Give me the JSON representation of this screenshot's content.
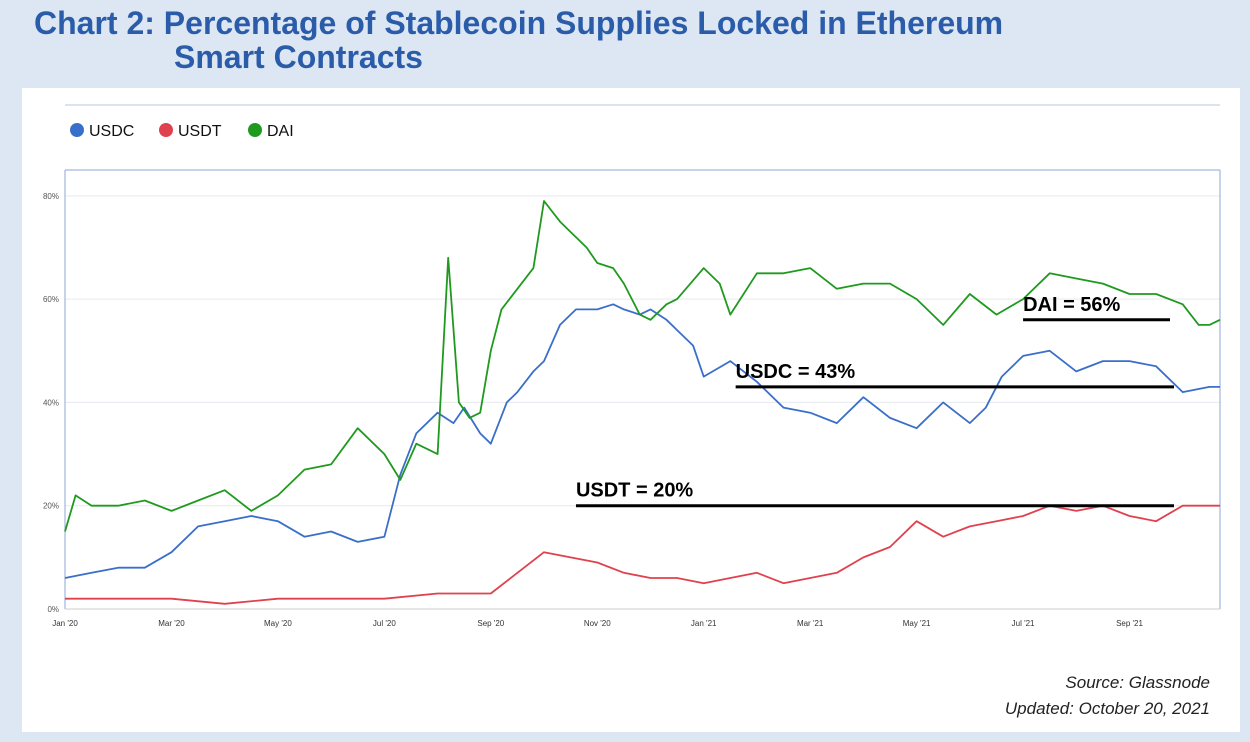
{
  "title": {
    "line1": "Chart 2: Percentage of Stablecoin Supplies Locked in Ethereum",
    "line2": "Smart Contracts"
  },
  "source": {
    "line1": "Source:  Glassnode",
    "line2": "Updated: October 20, 2021"
  },
  "colors": {
    "usdc": "#3a6fc9",
    "usdt": "#e0414e",
    "dai": "#1f9a1f",
    "frame": "#8fa6d8",
    "bg": "#dde7f4"
  },
  "chart_data": {
    "type": "line",
    "ylim": [
      0,
      85
    ],
    "yticks": [
      0,
      20,
      40,
      60,
      80
    ],
    "ytick_labels": [
      "0%",
      "20%",
      "40%",
      "60%",
      "80%"
    ],
    "xlim": [
      0,
      21.7
    ],
    "xticks": [
      0,
      2,
      4,
      6,
      8,
      10,
      12,
      14,
      16,
      18,
      20
    ],
    "xtick_labels": [
      "Jan '20",
      "Mar '20",
      "May '20",
      "Jul '20",
      "Sep '20",
      "Nov '20",
      "Jan '21",
      "Mar '21",
      "May '21",
      "Jul '21",
      "Sep '21"
    ],
    "legend_position": "top-left",
    "grid": true,
    "series": [
      {
        "name": "USDC",
        "color": "#3a6fc9",
        "x": [
          0,
          0.5,
          1,
          1.5,
          2,
          2.5,
          3,
          3.5,
          4,
          4.5,
          5,
          5.5,
          6,
          6.3,
          6.6,
          7,
          7.3,
          7.5,
          7.8,
          8,
          8.3,
          8.5,
          8.8,
          9,
          9.3,
          9.6,
          10,
          10.3,
          10.5,
          10.8,
          11,
          11.3,
          11.5,
          11.8,
          12,
          12.5,
          13,
          13.5,
          14,
          14.5,
          15,
          15.5,
          16,
          16.5,
          17,
          17.3,
          17.6,
          18,
          18.5,
          19,
          19.5,
          20,
          20.5,
          21,
          21.5,
          21.7
        ],
        "y": [
          6,
          7,
          8,
          8,
          11,
          16,
          17,
          18,
          17,
          14,
          15,
          13,
          14,
          26,
          34,
          38,
          36,
          39,
          34,
          32,
          40,
          42,
          46,
          48,
          55,
          58,
          58,
          59,
          58,
          57,
          58,
          56,
          54,
          51,
          45,
          48,
          44,
          39,
          38,
          36,
          41,
          37,
          35,
          40,
          36,
          39,
          45,
          49,
          50,
          46,
          48,
          48,
          47,
          42,
          43,
          43
        ]
      },
      {
        "name": "USDT",
        "color": "#e0414e",
        "x": [
          0,
          1,
          2,
          3,
          4,
          5,
          6,
          7,
          8,
          9,
          9.5,
          10,
          10.5,
          11,
          11.5,
          12,
          12.5,
          13,
          13.5,
          14,
          14.5,
          15,
          15.5,
          16,
          16.5,
          17,
          17.5,
          18,
          18.5,
          19,
          19.5,
          20,
          20.5,
          21,
          21.5,
          21.7
        ],
        "y": [
          2,
          2,
          2,
          1,
          2,
          2,
          2,
          3,
          3,
          11,
          10,
          9,
          7,
          6,
          6,
          5,
          6,
          7,
          5,
          6,
          7,
          10,
          12,
          17,
          14,
          16,
          17,
          18,
          20,
          19,
          20,
          18,
          17,
          20,
          20,
          20
        ]
      },
      {
        "name": "DAI",
        "color": "#1f9a1f",
        "x": [
          0,
          0.2,
          0.5,
          1,
          1.5,
          2,
          2.5,
          3,
          3.5,
          4,
          4.5,
          5,
          5.5,
          6,
          6.3,
          6.6,
          7,
          7.2,
          7.4,
          7.6,
          7.8,
          8,
          8.2,
          8.5,
          8.8,
          9,
          9.3,
          9.5,
          9.8,
          10,
          10.3,
          10.5,
          10.8,
          11,
          11.3,
          11.5,
          12,
          12.3,
          12.5,
          13,
          13.5,
          14,
          14.5,
          15,
          15.5,
          16,
          16.5,
          17,
          17.5,
          18,
          18.5,
          19,
          19.5,
          20,
          20.5,
          21,
          21.3,
          21.5,
          21.7
        ],
        "y": [
          15,
          22,
          20,
          20,
          21,
          19,
          21,
          23,
          19,
          22,
          27,
          28,
          35,
          30,
          25,
          32,
          30,
          68,
          40,
          37,
          38,
          50,
          58,
          62,
          66,
          79,
          75,
          73,
          70,
          67,
          66,
          63,
          57,
          56,
          59,
          60,
          66,
          63,
          57,
          65,
          65,
          66,
          62,
          63,
          63,
          60,
          55,
          61,
          57,
          60,
          65,
          64,
          63,
          61,
          61,
          59,
          55,
          55,
          56
        ]
      }
    ],
    "annotations": [
      {
        "text": "DAI = 56%",
        "x": 18,
        "value": 56
      },
      {
        "text": "USDC = 43%",
        "x": 12.6,
        "value": 43
      },
      {
        "text": "USDT = 20%",
        "x": 9.6,
        "value": 20
      }
    ]
  }
}
